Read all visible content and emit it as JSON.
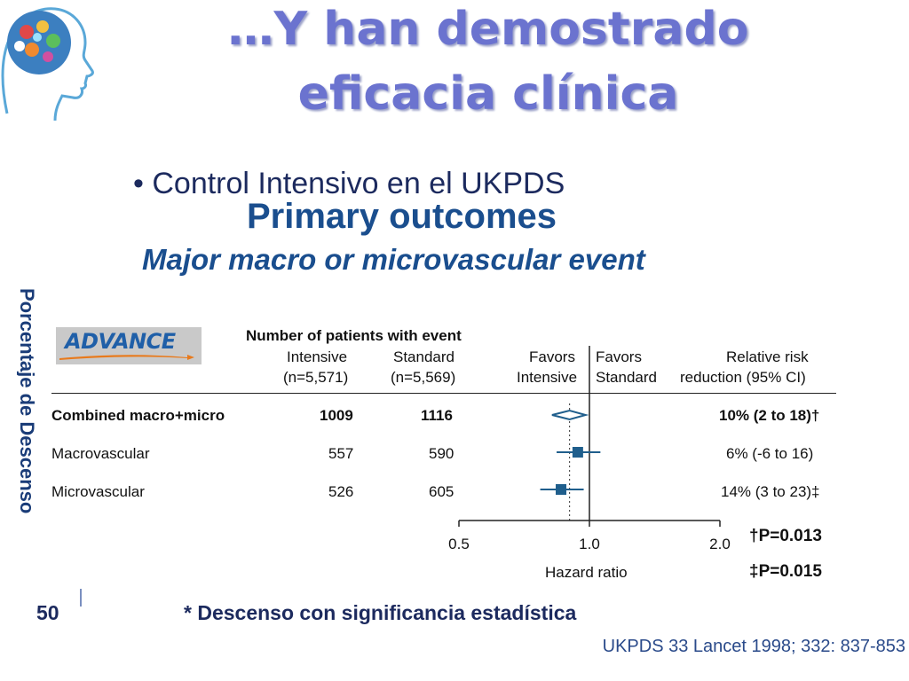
{
  "slide": {
    "title_line1": "…Y han demostrado",
    "title_line2": "eficacia clínica",
    "bullet": "• Control Intensivo en el UKPDS",
    "side_label": "Porcentaje de Descenso",
    "footnote": "* Descenso con significancia estadística",
    "page_number": "50",
    "citation": "UKPDS 33 Lancet 1998; 332: 837-853"
  },
  "chart_data": {
    "type": "forest",
    "title": "Primary outcomes",
    "subtitle": "Major macro or microvascular event",
    "logo_text": "ADVANCE",
    "headers": {
      "patients_group": "Number of patients with event",
      "intensive": "Intensive",
      "intensive_n": "(n=5,571)",
      "standard": "Standard",
      "standard_n": "(n=5,569)",
      "favors_left_1": "Favors",
      "favors_left_2": "Intensive",
      "favors_right_1": "Favors",
      "favors_right_2": "Standard",
      "rrr_1": "Relative risk",
      "rrr_2": "reduction (95% CI)"
    },
    "rows": [
      {
        "label": "Combined macro+micro",
        "intensive": "1009",
        "standard": "1116",
        "rrr": "10% (2 to 18)†",
        "hr": 0.9,
        "ci_low": 0.82,
        "ci_high": 0.98,
        "marker": "diamond",
        "bold": true
      },
      {
        "label": "Macrovascular",
        "intensive": "557",
        "standard": "590",
        "rrr": "6% (-6 to 16)",
        "hr": 0.94,
        "ci_low": 0.84,
        "ci_high": 1.06,
        "marker": "square",
        "bold": false
      },
      {
        "label": "Microvascular",
        "intensive": "526",
        "standard": "605",
        "rrr": "14% (3 to 23)‡",
        "hr": 0.86,
        "ci_low": 0.77,
        "ci_high": 0.97,
        "marker": "square",
        "bold": false
      }
    ],
    "x_axis": {
      "label": "Hazard ratio",
      "ticks": [
        {
          "value": 0.5,
          "label": "0.5"
        },
        {
          "value": 1.0,
          "label": "1.0"
        },
        {
          "value": 2.0,
          "label": "2.0"
        }
      ],
      "scale": "log",
      "reference_line": 1.0,
      "dashed_line": 0.9
    },
    "p_values": [
      "†P=0.013",
      "‡P=0.015"
    ],
    "colors": {
      "marker": "#1f5e8c",
      "title": "#6b73cf",
      "heading": "#1a4e8e"
    }
  }
}
